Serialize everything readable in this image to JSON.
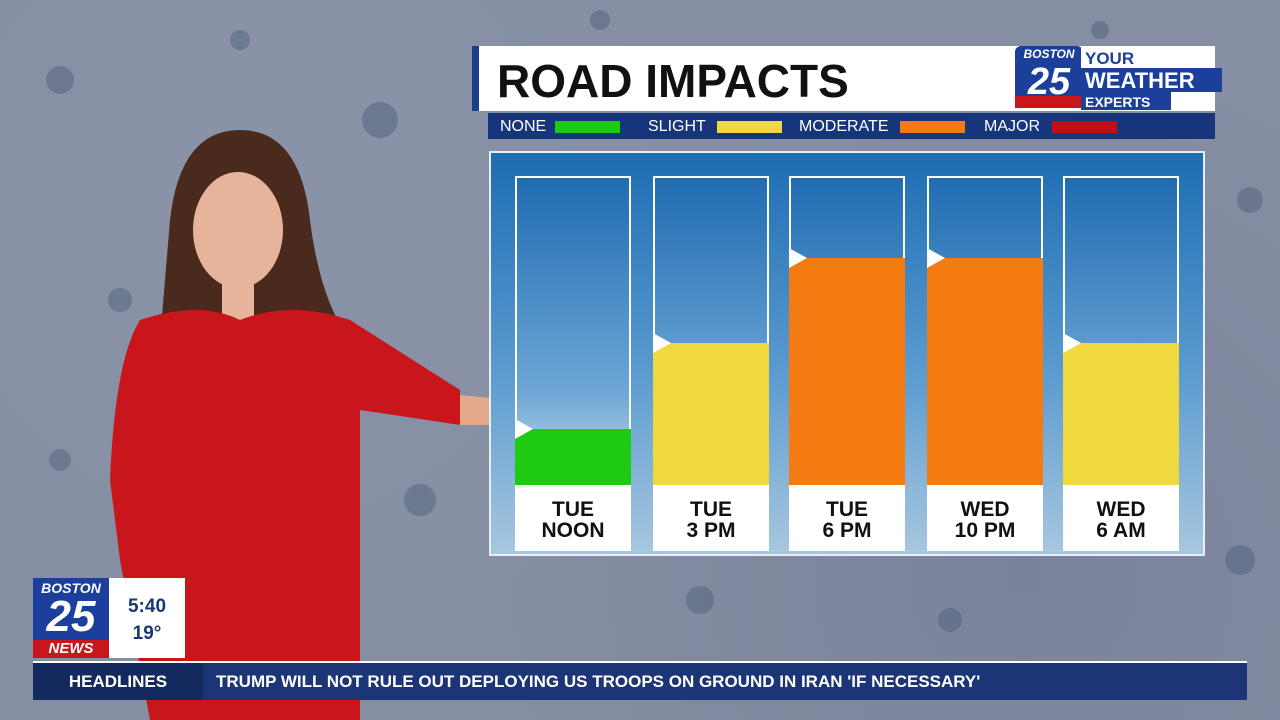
{
  "chart_data": {
    "type": "bar",
    "title": "ROAD IMPACTS",
    "legend": [
      {
        "name": "NONE",
        "color": "#1ecb12"
      },
      {
        "name": "SLIGHT",
        "color": "#f0d93e"
      },
      {
        "name": "MODERATE",
        "color": "#f47a12"
      },
      {
        "name": "MAJOR",
        "color": "#c40d16"
      }
    ],
    "categories": [
      "TUE\nNOON",
      "TUE\n3 PM",
      "TUE\n6 PM",
      "WED\n10 PM",
      "WED\n6 AM"
    ],
    "values": [
      1,
      2,
      3,
      3,
      2
    ],
    "ylim": [
      0.35,
      3.95
    ]
  },
  "brand": {
    "city": "BOSTON",
    "number": "25",
    "line1": "YOUR",
    "line2": "WEATHER",
    "line3": "EXPERTS",
    "news": "NEWS"
  },
  "bug": {
    "time": "5:40",
    "temperature": "19°"
  },
  "ticker": {
    "label": "HEADLINES",
    "text": "TRUMP WILL NOT RULE OUT DEPLOYING US TROOPS ON GROUND IN IRAN 'IF NECESSARY'"
  }
}
